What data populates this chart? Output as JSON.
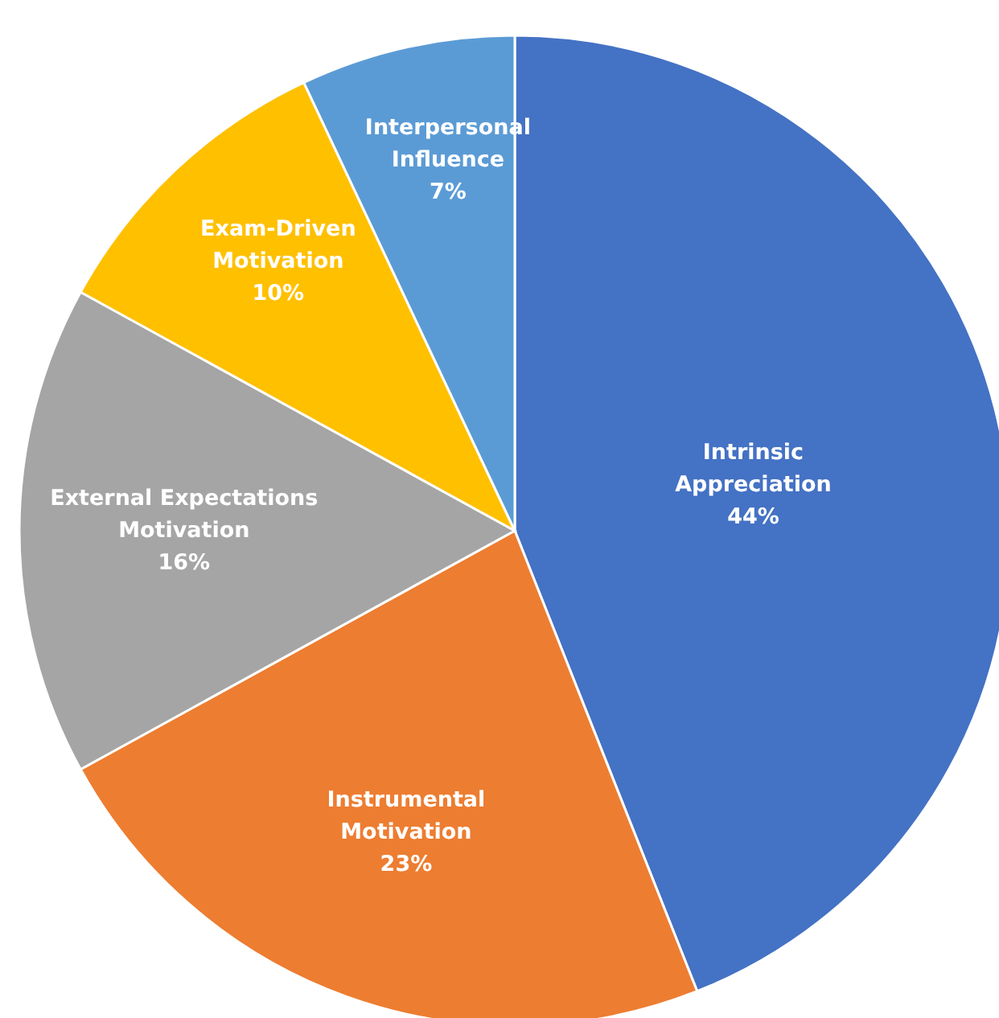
{
  "chart_data": {
    "type": "pie",
    "categories": [
      "Intrinsic Appreciation",
      "Instrumental Motivation",
      "External Expectations Motivation",
      "Exam-Driven Motivation",
      "Interpersonal Influence"
    ],
    "values": [
      44,
      23,
      16,
      10,
      7
    ],
    "colors": [
      "#4472c4",
      "#ed7d31",
      "#a5a5a5",
      "#ffc000",
      "#5b9bd5"
    ],
    "value_labels": [
      "44%",
      "23%",
      "16%",
      "10%",
      "7%"
    ]
  }
}
